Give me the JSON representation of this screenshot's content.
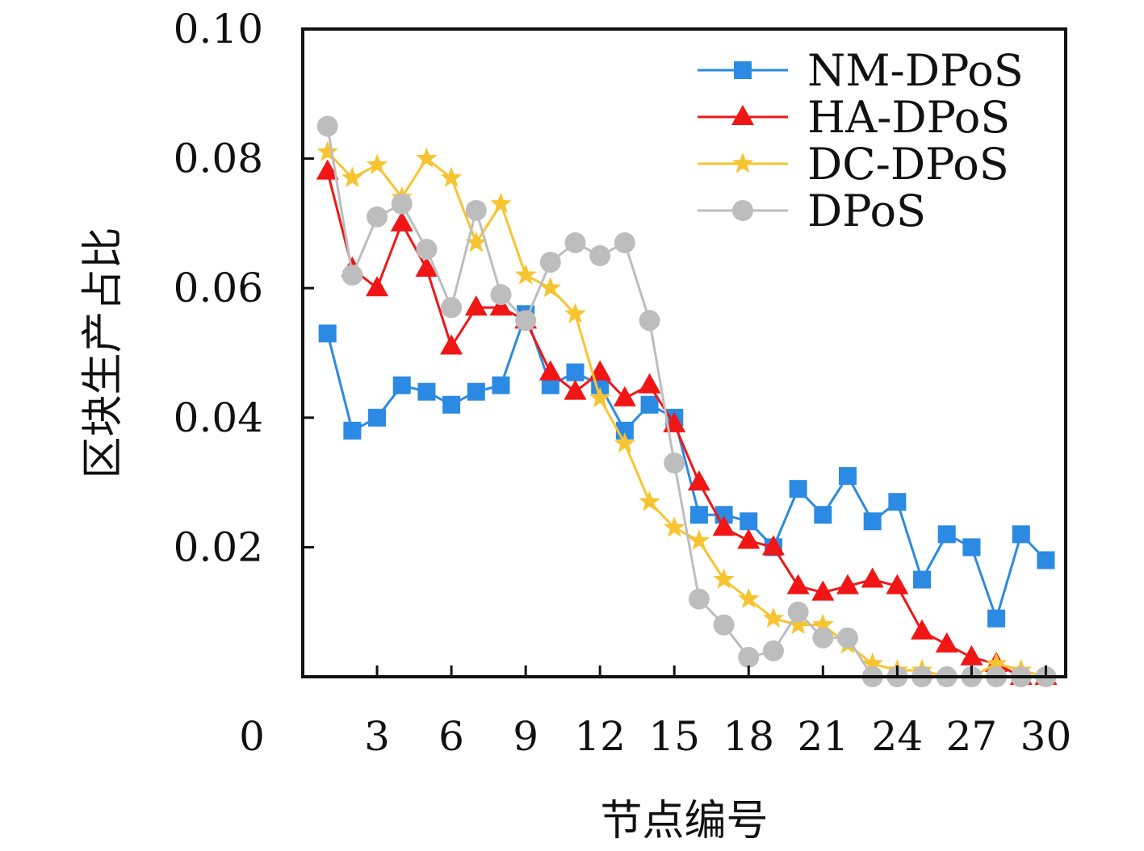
{
  "chart_data": {
    "type": "line",
    "title": "",
    "xlabel": "节点编号",
    "ylabel": "区块生产占比",
    "xlim": [
      0,
      30.8
    ],
    "ylim": [
      0,
      0.1
    ],
    "x_ticks": [
      3,
      6,
      9,
      12,
      15,
      18,
      21,
      24,
      27,
      30
    ],
    "x_tick_labels": [
      "3",
      "6",
      "9",
      "12",
      "15",
      "18",
      "21",
      "24",
      "27",
      "30"
    ],
    "y_ticks": [
      0.02,
      0.04,
      0.06,
      0.08,
      0.1
    ],
    "y_tick_labels": [
      "0.02",
      "0.04",
      "0.06",
      "0.08",
      "0.10"
    ],
    "origin_label": "0",
    "grid": false,
    "legend_position": "top-right",
    "x": [
      1,
      2,
      3,
      4,
      5,
      6,
      7,
      8,
      9,
      10,
      11,
      12,
      13,
      14,
      15,
      16,
      17,
      18,
      19,
      20,
      21,
      22,
      23,
      24,
      25,
      26,
      27,
      28,
      29,
      30
    ],
    "series": [
      {
        "name": "NM-DPoS",
        "color": "#2b8ae3",
        "marker": "square",
        "values": [
          0.053,
          0.038,
          0.04,
          0.045,
          0.044,
          0.042,
          0.044,
          0.045,
          0.056,
          0.045,
          0.047,
          0.045,
          0.038,
          0.042,
          0.04,
          0.025,
          0.025,
          0.024,
          0.02,
          0.029,
          0.025,
          0.031,
          0.024,
          0.027,
          0.015,
          0.022,
          0.02,
          0.009,
          0.022,
          0.018
        ]
      },
      {
        "name": "HA-DPoS",
        "color": "#f01616",
        "marker": "triangle",
        "values": [
          0.078,
          0.063,
          0.06,
          0.07,
          0.063,
          0.051,
          0.057,
          0.057,
          0.055,
          0.047,
          0.044,
          0.047,
          0.043,
          0.045,
          0.039,
          0.03,
          0.023,
          0.021,
          0.02,
          0.014,
          0.013,
          0.014,
          0.015,
          0.014,
          0.007,
          0.005,
          0.003,
          0.002,
          0.0,
          0.0
        ]
      },
      {
        "name": "DC-DPoS",
        "color": "#f7c431",
        "marker": "star",
        "values": [
          0.081,
          0.077,
          0.079,
          0.074,
          0.08,
          0.077,
          0.067,
          0.073,
          0.062,
          0.06,
          0.056,
          0.043,
          0.036,
          0.027,
          0.023,
          0.021,
          0.015,
          0.012,
          0.009,
          0.008,
          0.008,
          0.005,
          0.002,
          0.001,
          0.001,
          0.0,
          0.0,
          0.002,
          0.001,
          0.0
        ]
      },
      {
        "name": "DPoS",
        "color": "#bdbdbd",
        "marker": "circle",
        "values": [
          0.085,
          0.062,
          0.071,
          0.073,
          0.066,
          0.057,
          0.072,
          0.059,
          0.055,
          0.064,
          0.067,
          0.065,
          0.067,
          0.055,
          0.033,
          0.012,
          0.008,
          0.003,
          0.004,
          0.01,
          0.006,
          0.006,
          0.0,
          0.0,
          0.0,
          0.0,
          0.0,
          0.0,
          0.0,
          0.0
        ]
      }
    ]
  }
}
